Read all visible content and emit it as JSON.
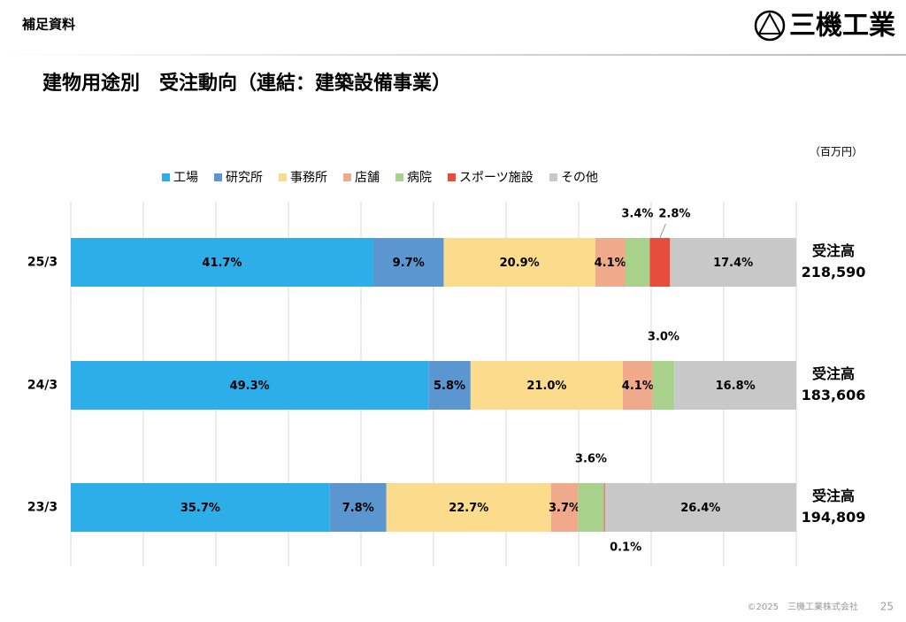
{
  "header": {
    "section": "補足資料",
    "logo": "三機工業"
  },
  "footer": {
    "copyright": "©2025　三機工業株式会社",
    "page": "25"
  },
  "chart_data": {
    "type": "stacked_bar_horizontal",
    "title": "建物用途別　受注動向（連結：建築設備事業）",
    "unit": "（百万円）",
    "categories": [
      "25/3",
      "24/3",
      "23/3"
    ],
    "series": [
      {
        "name": "工場",
        "color": "#2eaee9",
        "values": [
          41.7,
          49.3,
          35.7
        ],
        "value_labels": [
          "41.7%",
          "49.3%",
          "35.7%"
        ]
      },
      {
        "name": "研究所",
        "color": "#5b96d0",
        "values": [
          9.7,
          5.8,
          7.8
        ],
        "value_labels": [
          "9.7%",
          "5.8%",
          "7.8%"
        ]
      },
      {
        "name": "事務所",
        "color": "#fbdc8c",
        "values": [
          20.9,
          21.0,
          22.7
        ],
        "value_labels": [
          "20.9%",
          "21.0%",
          "22.7%"
        ]
      },
      {
        "name": "店舗",
        "color": "#f0a98a",
        "values": [
          4.1,
          4.1,
          3.7
        ],
        "value_labels": [
          "4.1%",
          "4.1%",
          "3.7%"
        ]
      },
      {
        "name": "病院",
        "color": "#a8d18c",
        "values": [
          3.4,
          3.0,
          3.6
        ],
        "value_labels": [
          "3.4%",
          "3.0%",
          "3.6%"
        ]
      },
      {
        "name": "スポーツ施設",
        "color": "#e74c3c",
        "values": [
          2.8,
          null,
          0.1
        ],
        "value_labels": [
          "2.8%",
          null,
          "0.1%"
        ]
      },
      {
        "name": "その他",
        "color": "#c8c8c8",
        "values": [
          17.4,
          16.8,
          26.4
        ],
        "value_labels": [
          "17.4%",
          "16.8%",
          "26.4%"
        ]
      }
    ],
    "total_label": "受注高",
    "totals": [
      {
        "value": 218590,
        "label": "218,590"
      },
      {
        "value": 183606,
        "label": "183,606"
      },
      {
        "value": 194809,
        "label": "194,809"
      }
    ],
    "xlim": [
      0,
      100
    ],
    "xticks": [
      0,
      10,
      20,
      30,
      40,
      50,
      60,
      70,
      80,
      90,
      100
    ],
    "grid": true,
    "legend": "top"
  }
}
